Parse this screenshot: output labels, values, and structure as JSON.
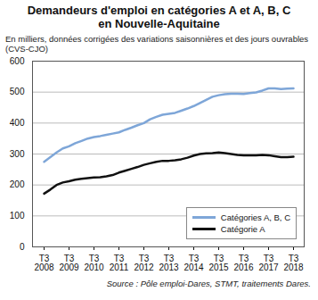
{
  "chart_data": {
    "type": "line",
    "title": "Demandeurs d'emploi en catégories A et A, B, C\nen Nouvelle-Aquitaine",
    "subtitle": "En milliers, données corrigées des variations saisonnières et des jours ouvrables (CVS-CJO)",
    "caption": "Source : Pôle emploi-Dares, STMT, traitements Dares.",
    "categories": [
      "T3\n2008",
      null,
      null,
      null,
      "T3\n2009",
      null,
      null,
      null,
      "T3\n2010",
      null,
      null,
      null,
      "T3\n2011",
      null,
      null,
      null,
      "T3\n2012",
      null,
      null,
      null,
      "T3\n2013",
      null,
      null,
      null,
      "T3\n2014",
      null,
      null,
      null,
      "T3\n2015",
      null,
      null,
      null,
      "T3\n2016",
      null,
      null,
      null,
      "T3\n2017",
      null,
      null,
      null,
      "T3\n2018"
    ],
    "series": [
      {
        "name": "Catégories A, B, C",
        "color": "#7ea6d8",
        "values": [
          275,
          290,
          305,
          318,
          325,
          335,
          342,
          350,
          355,
          358,
          362,
          366,
          370,
          378,
          385,
          393,
          400,
          412,
          420,
          427,
          430,
          433,
          440,
          447,
          455,
          465,
          475,
          485,
          490,
          493,
          495,
          495,
          494,
          497,
          499,
          505,
          512,
          512,
          510,
          511,
          512
        ]
      },
      {
        "name": "Catégorie A",
        "color": "#111111",
        "values": [
          172,
          185,
          200,
          208,
          212,
          217,
          220,
          222,
          224,
          225,
          228,
          232,
          240,
          246,
          252,
          258,
          265,
          270,
          275,
          278,
          278,
          280,
          283,
          288,
          295,
          300,
          302,
          303,
          305,
          303,
          300,
          297,
          296,
          296,
          296,
          297,
          296,
          293,
          290,
          290,
          291
        ]
      }
    ],
    "ylim": [
      0,
      600
    ],
    "yticks": [
      0,
      100,
      200,
      300,
      400,
      500,
      600
    ],
    "grid": true,
    "legend": "bottom-right"
  }
}
